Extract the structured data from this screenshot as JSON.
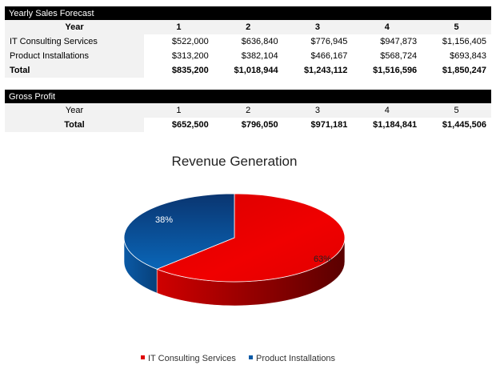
{
  "sales_table": {
    "title": "Yearly Sales Forecast",
    "header": {
      "label": "Year",
      "years": [
        "1",
        "2",
        "3",
        "4",
        "5"
      ]
    },
    "rows": [
      {
        "label": "IT Consulting Services",
        "values": [
          "$522,000",
          "$636,840",
          "$776,945",
          "$947,873",
          "$1,156,405"
        ]
      },
      {
        "label": "Product Installations",
        "values": [
          "$313,200",
          "$382,104",
          "$466,167",
          "$568,724",
          "$693,843"
        ]
      }
    ],
    "total": {
      "label": "Total",
      "values": [
        "$835,200",
        "$1,018,944",
        "$1,243,112",
        "$1,516,596",
        "$1,850,247"
      ]
    }
  },
  "profit_table": {
    "title": "Gross Profit",
    "header": {
      "label": "Year",
      "years": [
        "1",
        "2",
        "3",
        "4",
        "5"
      ]
    },
    "total": {
      "label": "Total",
      "values": [
        "$652,500",
        "$796,050",
        "$971,181",
        "$1,184,841",
        "$1,445,506"
      ]
    }
  },
  "chart_data": {
    "type": "pie",
    "style": "3d",
    "title": "Revenue Generation",
    "categories": [
      "IT Consulting Services",
      "Product Installations"
    ],
    "values": [
      63,
      38
    ],
    "data_labels": [
      "63%",
      "38%"
    ],
    "colors": [
      "#e00000",
      "#0a5aa6"
    ],
    "legend": "bottom"
  }
}
